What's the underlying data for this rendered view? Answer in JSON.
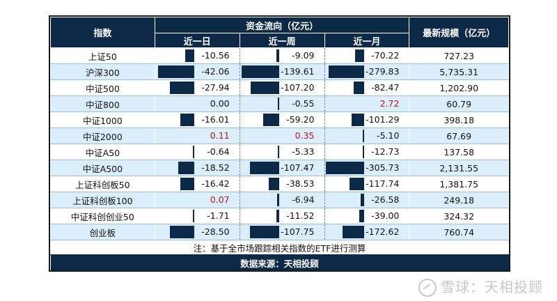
{
  "header": {
    "index_label": "指数",
    "flow_label": "资金流向（亿元）",
    "size_label": "最新规模（亿元）",
    "periods": [
      "近一日",
      "近一周",
      "近一月"
    ]
  },
  "rows": [
    {
      "name": "上证50",
      "d1": -10.56,
      "w1": -9.09,
      "m1": -70.22,
      "size": "727.23",
      "d1_text": "-10.56",
      "w1_text": "-9.09",
      "m1_text": "-70.22"
    },
    {
      "name": "沪深300",
      "d1": -42.06,
      "w1": -139.61,
      "m1": -279.83,
      "size": "5,735.31",
      "d1_text": "-42.06",
      "w1_text": "-139.61",
      "m1_text": "-279.83"
    },
    {
      "name": "中证500",
      "d1": -27.94,
      "w1": -107.2,
      "m1": -82.47,
      "size": "1,202.90",
      "d1_text": "-27.94",
      "w1_text": "-107.20",
      "m1_text": "-82.47"
    },
    {
      "name": "中证800",
      "d1": 0.0,
      "w1": -0.55,
      "m1": 2.72,
      "size": "60.79",
      "d1_text": "0.00",
      "w1_text": "-0.55",
      "m1_text": "2.72"
    },
    {
      "name": "中证1000",
      "d1": -16.01,
      "w1": -59.2,
      "m1": -101.29,
      "size": "398.18",
      "d1_text": "-16.01",
      "w1_text": "-59.20",
      "m1_text": "-101.29"
    },
    {
      "name": "中证2000",
      "d1": 0.11,
      "w1": 0.35,
      "m1": -5.1,
      "size": "67.69",
      "d1_text": "0.11",
      "w1_text": "0.35",
      "m1_text": "-5.10"
    },
    {
      "name": "中证A50",
      "d1": -0.64,
      "w1": -5.33,
      "m1": -12.73,
      "size": "137.58",
      "d1_text": "-0.64",
      "w1_text": "-5.33",
      "m1_text": "-12.73"
    },
    {
      "name": "中证A500",
      "d1": -18.52,
      "w1": -107.47,
      "m1": -305.73,
      "size": "2,131.55",
      "d1_text": "-18.52",
      "w1_text": "-107.47",
      "m1_text": "-305.73"
    },
    {
      "name": "上证科创板50",
      "d1": -16.42,
      "w1": -38.53,
      "m1": -117.74,
      "size": "1,381.75",
      "d1_text": "-16.42",
      "w1_text": "-38.53",
      "m1_text": "-117.74"
    },
    {
      "name": "上证科创板100",
      "d1": 0.07,
      "w1": -6.94,
      "m1": -26.58,
      "size": "249.18",
      "d1_text": "0.07",
      "w1_text": "-6.94",
      "m1_text": "-26.58"
    },
    {
      "name": "中证科创创业50",
      "d1": -1.71,
      "w1": -11.52,
      "m1": -39.0,
      "size": "324.32",
      "d1_text": "-1.71",
      "w1_text": "-11.52",
      "m1_text": "-39.00"
    },
    {
      "name": "创业板",
      "d1": -28.5,
      "w1": -107.75,
      "m1": -172.62,
      "size": "760.74",
      "d1_text": "-28.50",
      "w1_text": "-107.75",
      "m1_text": "-172.62"
    }
  ],
  "note": "注：基于全市场跟踪相关指数的ETF进行测算",
  "source": "数据来源：天相投顾",
  "watermark": "雪球：天相投顾",
  "colors": {
    "header": "#0c2a48",
    "band": "#dbeefb",
    "negative_bar": "#0c2a48",
    "positive_text": "#c0141e"
  }
}
